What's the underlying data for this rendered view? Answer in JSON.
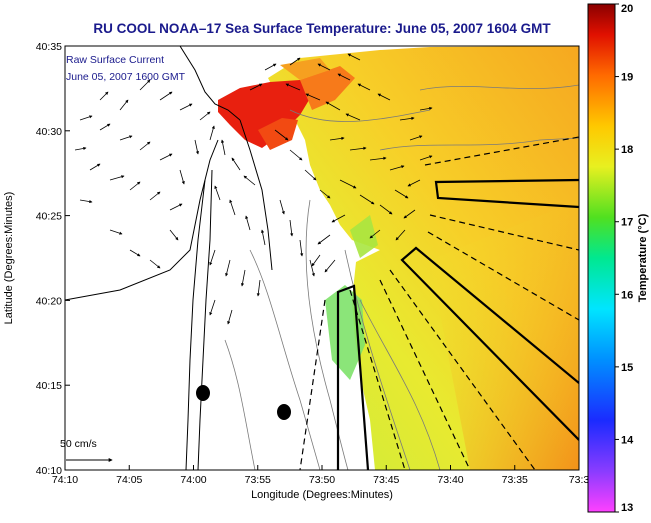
{
  "map": {
    "title": "RU COOL   NOAA–17  Sea Surface Temperature:  June 05, 2007 1604 GMT",
    "overlay_label_1": "Raw Surface Current",
    "overlay_label_2": "June 05, 2007 1600 GMT",
    "scale_label": "50 cm/s",
    "x_axis_label": "Longitude (Degrees:Minutes)",
    "y_axis_label": "Latitude (Degrees:Minutes)",
    "x_ticks": [
      "74:10",
      "74:05",
      "74:00",
      "73:55",
      "73:50",
      "73:45",
      "73:40",
      "73:35",
      "73:3"
    ],
    "y_ticks": [
      "40:35",
      "40:30",
      "40:25",
      "40:20",
      "40:15",
      "40:10"
    ]
  },
  "colorbar": {
    "label": "Temperature (°C)",
    "ticks": [
      "20",
      "19",
      "18",
      "17",
      "16",
      "15",
      "14",
      "13"
    ],
    "min": 13,
    "max": 20
  },
  "colors": {
    "title": "#1a1a8c",
    "land": "#ffffff",
    "coast": "#000000"
  }
}
